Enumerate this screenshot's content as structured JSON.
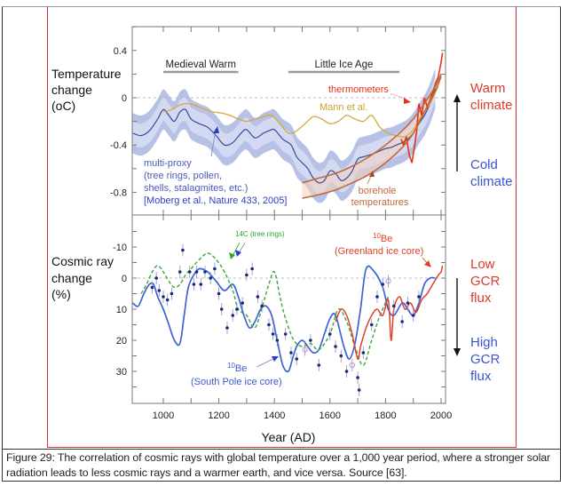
{
  "caption": "Figure 29: The correlation of cosmic rays with global temperature over a 1,000 year period, where a stronger solar radiation leads to less cosmic rays and a warmer earth, and vice versa. Source [63].",
  "colors": {
    "multiproxy": "#3a4a9a",
    "band_outer": "#aab6e0",
    "band_inner": "#d6dcf2",
    "mann": "#d4aa3a",
    "thermometers": "#e8301e",
    "borehole": "#c06a38",
    "be_south_pole": "#3c62d8",
    "c14": "#3aa63a",
    "be_greenland": "#e0402a",
    "points": "#1a2a78",
    "points_alt": "#c890d8",
    "warm": "#d93b2b",
    "cold": "#3b55d0"
  },
  "chart_data": [
    {
      "type": "line",
      "title": "",
      "ylabel": "Temperature change (oC)",
      "ylabel_lines": [
        "Temperature",
        "change",
        "(oC)"
      ],
      "xlabel": "",
      "xlim": [
        890,
        2010
      ],
      "ylim": [
        -1.0,
        0.6
      ],
      "yticks": [
        0.4,
        0,
        -0.4,
        -0.8
      ],
      "ytick_labels": [
        "0.4",
        "0",
        "-0.4",
        "-0.8"
      ],
      "zero_line": true,
      "periods": [
        {
          "label": "Medieval Warm",
          "start": 1000,
          "end": 1270
        },
        {
          "label": "Little Ice Age",
          "start": 1450,
          "end": 1850
        }
      ],
      "series": [
        {
          "name": "multi-proxy",
          "x": [
            890,
            920,
            950,
            980,
            1000,
            1020,
            1040,
            1060,
            1080,
            1100,
            1130,
            1160,
            1190,
            1220,
            1250,
            1280,
            1300,
            1330,
            1360,
            1380,
            1400,
            1430,
            1460,
            1480,
            1500,
            1520,
            1540,
            1560,
            1580,
            1600,
            1620,
            1640,
            1660,
            1680,
            1700,
            1720,
            1750,
            1780,
            1800,
            1820,
            1840,
            1860,
            1880,
            1900,
            1920,
            1940,
            1960,
            1979
          ],
          "y": [
            -0.3,
            -0.32,
            -0.28,
            -0.18,
            -0.1,
            -0.15,
            -0.2,
            -0.12,
            -0.1,
            -0.18,
            -0.22,
            -0.25,
            -0.32,
            -0.4,
            -0.38,
            -0.3,
            -0.27,
            -0.34,
            -0.3,
            -0.28,
            -0.27,
            -0.35,
            -0.4,
            -0.5,
            -0.55,
            -0.6,
            -0.68,
            -0.72,
            -0.7,
            -0.62,
            -0.64,
            -0.7,
            -0.68,
            -0.62,
            -0.52,
            -0.5,
            -0.48,
            -0.45,
            -0.43,
            -0.42,
            -0.4,
            -0.38,
            -0.35,
            -0.3,
            -0.22,
            -0.15,
            -0.05,
            0.08
          ]
        },
        {
          "name": "Mann et al.",
          "x": [
            1000,
            1030,
            1060,
            1090,
            1120,
            1150,
            1180,
            1210,
            1240,
            1270,
            1300,
            1330,
            1360,
            1390,
            1420,
            1450,
            1480,
            1510,
            1540,
            1570,
            1600,
            1630,
            1660,
            1690,
            1720,
            1750,
            1780,
            1810,
            1840,
            1870,
            1900,
            1930,
            1960,
            1990
          ],
          "y": [
            -0.12,
            -0.1,
            -0.06,
            -0.05,
            -0.07,
            -0.1,
            -0.12,
            -0.13,
            -0.15,
            -0.18,
            -0.2,
            -0.18,
            -0.16,
            -0.15,
            -0.22,
            -0.3,
            -0.28,
            -0.22,
            -0.16,
            -0.18,
            -0.22,
            -0.2,
            -0.15,
            -0.18,
            -0.2,
            -0.15,
            -0.25,
            -0.3,
            -0.32,
            -0.33,
            -0.27,
            -0.15,
            -0.05,
            0.1
          ]
        },
        {
          "name": "thermometers",
          "x": [
            1856,
            1865,
            1875,
            1885,
            1895,
            1905,
            1912,
            1920,
            1930,
            1940,
            1950,
            1960,
            1970,
            1980,
            1990,
            2000,
            2005
          ],
          "y": [
            -0.35,
            -0.4,
            -0.33,
            -0.48,
            -0.55,
            -0.4,
            -0.28,
            -0.05,
            -0.15,
            0.0,
            -0.08,
            -0.02,
            0.05,
            0.12,
            0.18,
            0.3,
            0.38
          ]
        },
        {
          "name": "borehole temperatures (upper)",
          "x": [
            1500,
            1560,
            1620,
            1680,
            1740,
            1800,
            1860,
            1900,
            1940,
            1980,
            2000
          ],
          "y": [
            -0.72,
            -0.68,
            -0.64,
            -0.58,
            -0.5,
            -0.4,
            -0.28,
            -0.18,
            -0.05,
            0.1,
            0.2
          ]
        },
        {
          "name": "borehole temperatures (lower)",
          "x": [
            1500,
            1560,
            1620,
            1680,
            1740,
            1800,
            1860,
            1900,
            1940,
            1980,
            2000
          ],
          "y": [
            -0.85,
            -0.82,
            -0.78,
            -0.72,
            -0.65,
            -0.55,
            -0.42,
            -0.3,
            -0.12,
            0.06,
            0.18
          ]
        }
      ],
      "annotations": {
        "multiproxy_lines": [
          "multi-proxy",
          "(tree rings, pollen,",
          "shells, stalagmites, etc.)"
        ],
        "multiproxy_ref": "[Moberg et al., Nature 433, 2005]",
        "mann": "Mann et al.",
        "thermometers": "thermometers",
        "borehole_lines": [
          "borehole",
          "temperatures"
        ]
      },
      "side_labels": {
        "top": [
          "Warm",
          "climate"
        ],
        "bottom": [
          "Cold",
          "climate"
        ]
      }
    },
    {
      "type": "line",
      "title": "",
      "ylabel": "Cosmic ray change (%)",
      "ylabel_lines": [
        "Cosmic ray",
        "change",
        "(%)"
      ],
      "xlabel": "Year (AD)",
      "xlim": [
        890,
        2010
      ],
      "ylim": [
        40,
        -20
      ],
      "y_inverted": true,
      "xticks": [
        1000,
        1200,
        1400,
        1600,
        1800,
        2000
      ],
      "xtick_labels": [
        "1000",
        "1200",
        "1400",
        "1600",
        "1800",
        "2000"
      ],
      "yticks": [
        -10,
        0,
        10,
        20,
        30
      ],
      "ytick_labels": [
        "-10",
        "0",
        "10",
        "20",
        "30"
      ],
      "zero_line": true,
      "series": [
        {
          "name": "10Be (South Pole ice core)",
          "x": [
            890,
            910,
            930,
            950,
            965,
            980,
            1000,
            1020,
            1040,
            1060,
            1075,
            1090,
            1110,
            1130,
            1160,
            1190,
            1220,
            1250,
            1270,
            1290,
            1310,
            1330,
            1350,
            1370,
            1390,
            1410,
            1430,
            1450,
            1465,
            1480,
            1500,
            1520,
            1540,
            1560,
            1580,
            1600,
            1620,
            1650,
            1670,
            1690,
            1710,
            1730,
            1760,
            1790,
            1810,
            1830,
            1860,
            1880,
            1900,
            1920,
            1940,
            1960,
            1979
          ],
          "y": [
            8,
            9,
            5,
            2,
            2,
            6,
            10,
            15,
            20,
            21,
            12,
            3,
            -1,
            -3,
            -2,
            1,
            4,
            2,
            6,
            12,
            16,
            14,
            10,
            9,
            12,
            20,
            28,
            30,
            26,
            22,
            20,
            22,
            24,
            23,
            18,
            13,
            12,
            22,
            26,
            21,
            10,
            -3,
            -2,
            3,
            10,
            12,
            8,
            10,
            12,
            8,
            2,
            0,
            0
          ]
        },
        {
          "name": "14C (tree rings)",
          "x": [
            920,
            940,
            960,
            980,
            1000,
            1020,
            1040,
            1060,
            1080,
            1100,
            1130,
            1160,
            1190,
            1220,
            1250,
            1270,
            1300,
            1330,
            1360,
            1380,
            1400,
            1420,
            1440,
            1470,
            1500,
            1530,
            1560,
            1600,
            1630,
            1660,
            1690,
            1720,
            1750,
            1780,
            1810
          ],
          "y": [
            5,
            2,
            -2,
            -4,
            -2,
            1,
            3,
            2,
            -1,
            -3,
            -6,
            -8,
            -6,
            -2,
            4,
            10,
            12,
            16,
            8,
            2,
            -2,
            6,
            13,
            20,
            22,
            21,
            23,
            18,
            10,
            14,
            22,
            28,
            20,
            12,
            6
          ]
        },
        {
          "name": "10Be (Greenland ice core)",
          "x": [
            1620,
            1640,
            1660,
            1680,
            1700,
            1710,
            1730,
            1750,
            1770,
            1790,
            1810,
            1820,
            1830,
            1850,
            1870,
            1890,
            1910,
            1930,
            1950,
            1970,
            1990,
            2000,
            2005
          ],
          "y": [
            14,
            10,
            12,
            18,
            26,
            22,
            16,
            12,
            10,
            12,
            7,
            20,
            10,
            6,
            10,
            8,
            11,
            7,
            5,
            2,
            -1,
            -2,
            -4
          ]
        }
      ],
      "points": {
        "x": [
          960,
          975,
          985,
          1000,
          1015,
          1030,
          1060,
          1070,
          1095,
          1110,
          1120,
          1135,
          1150,
          1170,
          1185,
          1200,
          1210,
          1230,
          1250,
          1265,
          1285,
          1300,
          1320,
          1340,
          1355,
          1380,
          1395,
          1410,
          1440,
          1460,
          1480,
          1510,
          1530,
          1560,
          1600,
          1620,
          1640,
          1660,
          1680,
          1700,
          1705,
          1720,
          1750,
          1770,
          1790,
          1810,
          1830,
          1860,
          1880,
          1900,
          1920
        ],
        "y": [
          3,
          0,
          4,
          6,
          7,
          5,
          -2,
          -9,
          -2,
          2,
          -2,
          2,
          -2,
          0,
          -3,
          5,
          10,
          16,
          12,
          10,
          8,
          -1,
          -3,
          6,
          9,
          15,
          18,
          20,
          18,
          24,
          26,
          23,
          20,
          28,
          18,
          22,
          25,
          30,
          28,
          32,
          36,
          24,
          15,
          6,
          2,
          1,
          9,
          14,
          8,
          12,
          6
        ]
      },
      "annotations": {
        "c14": "14C (tree rings)",
        "be_sp_sup": "10",
        "be_sp_main": "Be",
        "be_sp_sub": "(South Pole ice core)",
        "be_gl_sup": "10",
        "be_gl_main": "Be",
        "be_gl_sub": "(Greenland ice core)"
      },
      "side_labels": {
        "top": [
          "Low",
          "GCR",
          "flux"
        ],
        "bottom": [
          "High",
          "GCR",
          "flux"
        ]
      }
    }
  ]
}
